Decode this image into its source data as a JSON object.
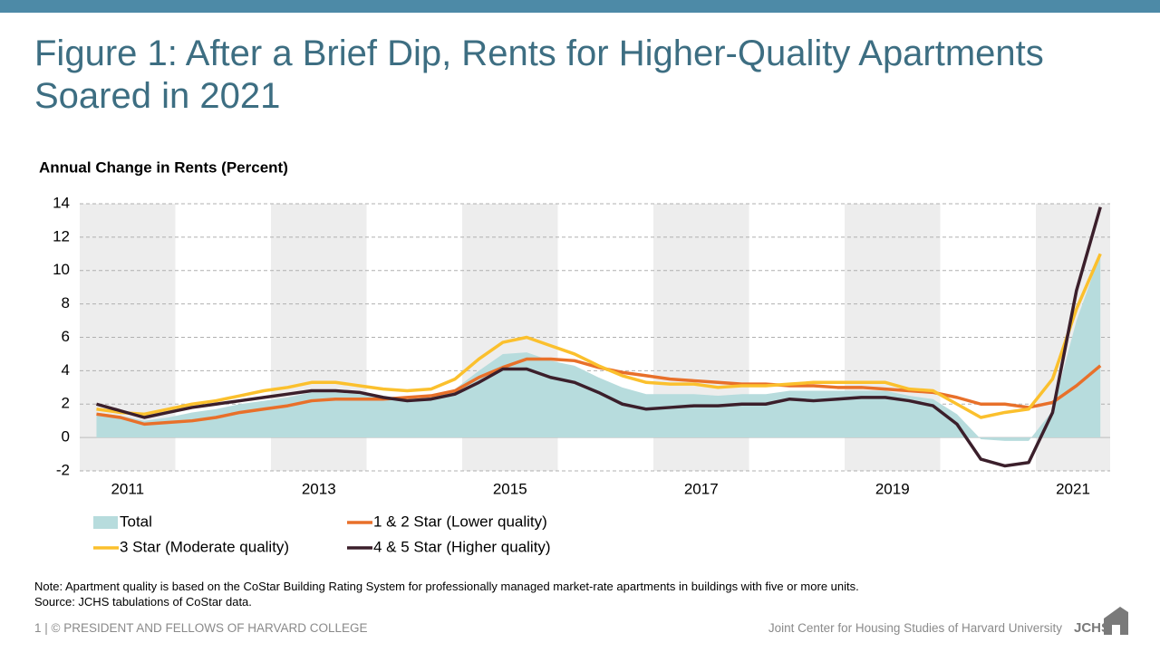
{
  "header": {
    "title": "Figure 1: After a Brief Dip, Rents for Higher-Quality Apartments Soared in 2021"
  },
  "chart_data": {
    "type": "line",
    "title": "Annual Change in Rents (Percent)",
    "categories": [
      "2011",
      null,
      null,
      null,
      null,
      null,
      null,
      null,
      "2013",
      null,
      null,
      null,
      null,
      null,
      null,
      null,
      "2015",
      null,
      null,
      null,
      null,
      null,
      null,
      null,
      "2017",
      null,
      null,
      null,
      null,
      null,
      null,
      null,
      "2019",
      null,
      null,
      null,
      null,
      null,
      null,
      null,
      "2021",
      null,
      null
    ],
    "series": [
      {
        "name": "Total",
        "color": "#b7dcdd",
        "kind": "area",
        "values": [
          1.5,
          1.3,
          1.0,
          1.2,
          1.5,
          1.7,
          2.0,
          2.2,
          2.4,
          2.7,
          2.7,
          2.6,
          2.4,
          2.3,
          2.4,
          2.9,
          4.0,
          5.0,
          5.1,
          4.6,
          4.3,
          3.6,
          3.0,
          2.6,
          2.6,
          2.6,
          2.5,
          2.6,
          2.6,
          2.8,
          2.8,
          2.8,
          2.8,
          2.8,
          2.5,
          2.3,
          1.4,
          -0.1,
          -0.2,
          -0.2,
          1.6,
          7.0,
          11.0
        ]
      },
      {
        "name": "1 & 2 Star (Lower quality)",
        "color": "#e8702a",
        "values": [
          1.4,
          1.2,
          0.8,
          0.9,
          1.0,
          1.2,
          1.5,
          1.7,
          1.9,
          2.2,
          2.3,
          2.3,
          2.3,
          2.4,
          2.5,
          2.8,
          3.6,
          4.2,
          4.7,
          4.7,
          4.6,
          4.2,
          3.9,
          3.7,
          3.5,
          3.4,
          3.3,
          3.2,
          3.2,
          3.1,
          3.1,
          3.0,
          3.0,
          2.9,
          2.8,
          2.7,
          2.4,
          2.0,
          2.0,
          1.8,
          2.1,
          3.1,
          4.3
        ]
      },
      {
        "name": "3 Star (Moderate quality)",
        "color": "#fbc02d",
        "values": [
          1.7,
          1.5,
          1.4,
          1.7,
          2.0,
          2.2,
          2.5,
          2.8,
          3.0,
          3.3,
          3.3,
          3.1,
          2.9,
          2.8,
          2.9,
          3.5,
          4.7,
          5.7,
          6.0,
          5.5,
          5.0,
          4.3,
          3.7,
          3.3,
          3.2,
          3.2,
          3.0,
          3.1,
          3.1,
          3.2,
          3.3,
          3.3,
          3.3,
          3.3,
          2.9,
          2.8,
          2.0,
          1.2,
          1.5,
          1.7,
          3.5,
          7.7,
          11.0
        ]
      },
      {
        "name": "4 & 5 Star (Higher quality)",
        "color": "#3b1f2b",
        "values": [
          2.0,
          1.6,
          1.2,
          1.5,
          1.8,
          2.0,
          2.2,
          2.4,
          2.6,
          2.8,
          2.8,
          2.7,
          2.4,
          2.2,
          2.3,
          2.6,
          3.3,
          4.1,
          4.1,
          3.6,
          3.3,
          2.7,
          2.0,
          1.7,
          1.8,
          1.9,
          1.9,
          2.0,
          2.0,
          2.3,
          2.2,
          2.3,
          2.4,
          2.4,
          2.2,
          1.9,
          0.8,
          -1.3,
          -1.7,
          -1.5,
          1.5,
          8.8,
          13.8
        ]
      }
    ],
    "ylim": [
      -2,
      14
    ],
    "yticks": [
      -2,
      0,
      2,
      4,
      6,
      8,
      10,
      12,
      14
    ],
    "grid": true
  },
  "notes": [
    "Note: Apartment quality is based on the CoStar Building Rating System for professionally managed market-rate apartments in buildings with five or more units.",
    "Source: JCHS tabulations of CoStar data."
  ],
  "footer": {
    "left": "1 | © PRESIDENT AND FELLOWS OF HARVARD COLLEGE",
    "right": "Joint Center for Housing Studies of Harvard University",
    "logo": "JCHS"
  }
}
